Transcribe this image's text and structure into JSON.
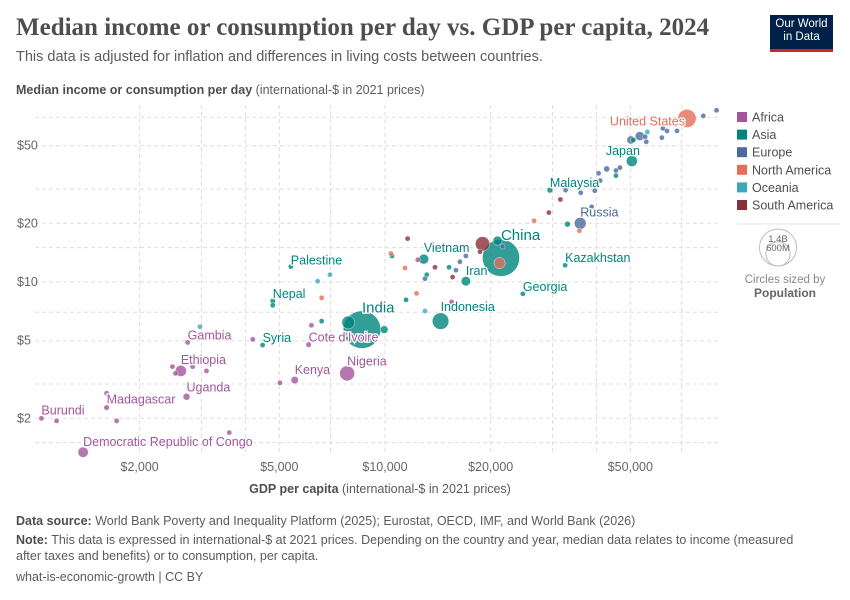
{
  "header": {
    "title": "Median income or consumption per day vs. GDP per capita, 2024",
    "subtitle": "This data is adjusted for inflation and differences in living costs between countries.",
    "logo": {
      "line1": "Our World",
      "line2": "in Data",
      "bg_color": "#002147",
      "accent_color": "#ce261e"
    }
  },
  "chart_data": {
    "type": "scatter",
    "title": "Median income or consumption per day vs. GDP per capita, 2024",
    "ylabel_bold": "Median income or consumption per day",
    "ylabel_unit": "(international-$ in 2021 prices)",
    "xlabel_bold": "GDP per capita",
    "xlabel_unit": "(international-$ in 2021 prices)",
    "x_scale": "log",
    "y_scale": "log",
    "xlim": [
      1000,
      90000
    ],
    "ylim": [
      1.3,
      81
    ],
    "x_ticks": [
      {
        "v": 2000,
        "label": "$2,000"
      },
      {
        "v": 5000,
        "label": "$5,000"
      },
      {
        "v": 10000,
        "label": "$10,000"
      },
      {
        "v": 20000,
        "label": "$20,000"
      },
      {
        "v": 50000,
        "label": "$50,000"
      }
    ],
    "y_ticks": [
      {
        "v": 2,
        "label": "$2"
      },
      {
        "v": 5,
        "label": "$5"
      },
      {
        "v": 10,
        "label": "$10"
      },
      {
        "v": 20,
        "label": "$20"
      },
      {
        "v": 50,
        "label": "$50"
      }
    ],
    "grid": true,
    "legend_position": "right",
    "regions": [
      {
        "name": "Africa",
        "color": "#a2559c"
      },
      {
        "name": "Asia",
        "color": "#00847e"
      },
      {
        "name": "Europe",
        "color": "#4c6a9c"
      },
      {
        "name": "North America",
        "color": "#e56e5a"
      },
      {
        "name": "Oceania",
        "color": "#38aaba"
      },
      {
        "name": "South America",
        "color": "#883039"
      }
    ],
    "size_legend": {
      "title": "Circles sized by",
      "variable": "Population",
      "large": "1.4B",
      "small": "600M",
      "large_value_millions": 1400,
      "small_value_millions": 600
    },
    "points": [
      {
        "label": "United States",
        "region": "North America",
        "x": 72500,
        "y": 69,
        "pop": 340
      },
      {
        "label": "Japan",
        "region": "Asia",
        "x": 50500,
        "y": 41.7,
        "pop": 124
      },
      {
        "label": "Malaysia",
        "region": "Asia",
        "x": 29500,
        "y": 29.6,
        "pop": 35
      },
      {
        "label": "Russia",
        "region": "Europe",
        "x": 36000,
        "y": 20,
        "pop": 144
      },
      {
        "label": "China",
        "region": "Asia",
        "x": 21400,
        "y": 13.3,
        "pop": 1410
      },
      {
        "label": "Kazakhstan",
        "region": "Asia",
        "x": 32600,
        "y": 12.2,
        "pop": 20
      },
      {
        "label": "Vietnam",
        "region": "Asia",
        "x": 12900,
        "y": 13.1,
        "pop": 100
      },
      {
        "label": "Iran",
        "region": "Asia",
        "x": 17000,
        "y": 10.1,
        "pop": 90
      },
      {
        "label": "Georgia",
        "region": "Asia",
        "x": 24700,
        "y": 8.7,
        "pop": 4
      },
      {
        "label": "Indonesia",
        "region": "Asia",
        "x": 14400,
        "y": 6.3,
        "pop": 280
      },
      {
        "label": "India",
        "region": "Asia",
        "x": 8600,
        "y": 5.7,
        "pop": 1440
      },
      {
        "label": "Palestine",
        "region": "Asia",
        "x": 5390,
        "y": 12.0,
        "pop": 5
      },
      {
        "label": "Nepal",
        "region": "Asia",
        "x": 4790,
        "y": 8.0,
        "pop": 30
      },
      {
        "label": "Gambia",
        "region": "Africa",
        "x": 2740,
        "y": 4.9,
        "pop": 3
      },
      {
        "label": "Syria",
        "region": "Asia",
        "x": 4480,
        "y": 4.75,
        "pop": 23
      },
      {
        "label": "Cote d'Ivoire",
        "region": "Africa",
        "x": 6060,
        "y": 4.77,
        "pop": 31
      },
      {
        "label": "Ethiopia",
        "region": "Africa",
        "x": 2620,
        "y": 3.5,
        "pop": 128
      },
      {
        "label": "Kenya",
        "region": "Africa",
        "x": 5530,
        "y": 3.14,
        "pop": 56
      },
      {
        "label": "Nigeria",
        "region": "Africa",
        "x": 7800,
        "y": 3.4,
        "pop": 230
      },
      {
        "label": "Uganda",
        "region": "Africa",
        "x": 2720,
        "y": 2.58,
        "pop": 49
      },
      {
        "label": "Madagascar",
        "region": "Africa",
        "x": 1610,
        "y": 2.27,
        "pop": 31
      },
      {
        "label": "Burundi",
        "region": "Africa",
        "x": 1050,
        "y": 2.0,
        "pop": 14
      },
      {
        "label": "Democratic Republic of Congo",
        "region": "Africa",
        "x": 1380,
        "y": 1.34,
        "pop": 110
      },
      {
        "region": "Africa",
        "x": 1160,
        "y": 1.94,
        "pop": 10
      },
      {
        "region": "Africa",
        "x": 1720,
        "y": 1.94,
        "pop": 10
      },
      {
        "region": "Africa",
        "x": 1610,
        "y": 2.69,
        "pop": 10
      },
      {
        "region": "Africa",
        "x": 2480,
        "y": 3.68,
        "pop": 10
      },
      {
        "region": "Africa",
        "x": 2530,
        "y": 3.4,
        "pop": 20
      },
      {
        "region": "Africa",
        "x": 2830,
        "y": 3.68,
        "pop": 10
      },
      {
        "region": "Africa",
        "x": 3100,
        "y": 3.5,
        "pop": 10
      },
      {
        "region": "Africa",
        "x": 3600,
        "y": 1.69,
        "pop": 10
      },
      {
        "region": "Oceania",
        "x": 2970,
        "y": 5.9,
        "pop": 10
      },
      {
        "region": "Africa",
        "x": 4200,
        "y": 5.08,
        "pop": 10
      },
      {
        "region": "Africa",
        "x": 5020,
        "y": 3.04,
        "pop": 10
      },
      {
        "region": "Oceania",
        "x": 6430,
        "y": 10.1,
        "pop": 10
      },
      {
        "region": "Oceania",
        "x": 6970,
        "y": 10.9,
        "pop": 10
      },
      {
        "region": "North America",
        "x": 6600,
        "y": 8.3,
        "pop": 10
      },
      {
        "region": "Africa",
        "x": 6170,
        "y": 6.0,
        "pop": 10
      },
      {
        "region": "Asia",
        "x": 6600,
        "y": 6.3,
        "pop": 10
      },
      {
        "region": "Asia",
        "x": 4790,
        "y": 7.6,
        "pop": 10
      },
      {
        "region": "Asia",
        "x": 7860,
        "y": 6.2,
        "pop": 170
      },
      {
        "region": "Asia",
        "x": 9950,
        "y": 5.7,
        "pop": 60
      },
      {
        "region": "North America",
        "x": 10400,
        "y": 14.0,
        "pop": 10
      },
      {
        "region": "Asia",
        "x": 10470,
        "y": 13.6,
        "pop": 15
      },
      {
        "region": "South America",
        "x": 11600,
        "y": 16.7,
        "pop": 10
      },
      {
        "region": "North America",
        "x": 11400,
        "y": 11.8,
        "pop": 10
      },
      {
        "region": "Africa",
        "x": 12400,
        "y": 13.0,
        "pop": 10
      },
      {
        "region": "Asia",
        "x": 11480,
        "y": 8.1,
        "pop": 10
      },
      {
        "region": "North America",
        "x": 12300,
        "y": 8.75,
        "pop": 10
      },
      {
        "region": "Asia",
        "x": 13150,
        "y": 10.9,
        "pop": 25
      },
      {
        "region": "Europe",
        "x": 13000,
        "y": 10.4,
        "pop": 10
      },
      {
        "region": "South America",
        "x": 13880,
        "y": 11.9,
        "pop": 10
      },
      {
        "region": "Asia",
        "x": 15220,
        "y": 11.9,
        "pop": 10
      },
      {
        "region": "South America",
        "x": 15580,
        "y": 10.6,
        "pop": 18
      },
      {
        "region": "Europe",
        "x": 15930,
        "y": 11.5,
        "pop": 10
      },
      {
        "region": "Europe",
        "x": 16350,
        "y": 12.7,
        "pop": 10
      },
      {
        "region": "Europe",
        "x": 17000,
        "y": 13.6,
        "pop": 12
      },
      {
        "region": "South America",
        "x": 18650,
        "y": 14.3,
        "pop": 10
      },
      {
        "region": "South America",
        "x": 18960,
        "y": 15.7,
        "pop": 212
      },
      {
        "region": "Asia",
        "x": 20930,
        "y": 16.3,
        "pop": 85
      },
      {
        "region": "Europe",
        "x": 21620,
        "y": 15.2,
        "pop": 10
      },
      {
        "region": "North America",
        "x": 21200,
        "y": 12.5,
        "pop": 130
      },
      {
        "region": "Oceania",
        "x": 13000,
        "y": 7.1,
        "pop": 10
      },
      {
        "region": "Africa",
        "x": 15480,
        "y": 7.9,
        "pop": 20
      },
      {
        "region": "North America",
        "x": 26600,
        "y": 20.6,
        "pop": 10
      },
      {
        "region": "South America",
        "x": 29300,
        "y": 22.7,
        "pop": 10
      },
      {
        "region": "South America",
        "x": 31600,
        "y": 26.5,
        "pop": 10
      },
      {
        "region": "Europe",
        "x": 32700,
        "y": 29.6,
        "pop": 10
      },
      {
        "region": "Europe",
        "x": 36100,
        "y": 28.7,
        "pop": 10
      },
      {
        "region": "Europe",
        "x": 39600,
        "y": 29.4,
        "pop": 10
      },
      {
        "region": "Europe",
        "x": 38800,
        "y": 24.3,
        "pop": 10
      },
      {
        "region": "Asia",
        "x": 33100,
        "y": 19.8,
        "pop": 35
      },
      {
        "region": "North America",
        "x": 35800,
        "y": 18.3,
        "pop": 10
      },
      {
        "region": "Europe",
        "x": 41000,
        "y": 33.1,
        "pop": 10
      },
      {
        "region": "Europe",
        "x": 40600,
        "y": 36.1,
        "pop": 10
      },
      {
        "region": "Europe",
        "x": 42800,
        "y": 38,
        "pop": 38
      },
      {
        "region": "Europe",
        "x": 45500,
        "y": 37.3,
        "pop": 10
      },
      {
        "region": "Europe",
        "x": 46700,
        "y": 38.6,
        "pop": 10
      },
      {
        "region": "Asia",
        "x": 45500,
        "y": 35.1,
        "pop": 10
      },
      {
        "region": "Europe",
        "x": 50200,
        "y": 53.5,
        "pop": 68
      },
      {
        "region": "Asia",
        "x": 51000,
        "y": 53.5,
        "pop": 20
      },
      {
        "region": "Europe",
        "x": 53200,
        "y": 56,
        "pop": 84
      },
      {
        "region": "Europe",
        "x": 55500,
        "y": 52.4,
        "pop": 10
      },
      {
        "region": "Oceania",
        "x": 55900,
        "y": 58.8,
        "pop": 27
      },
      {
        "region": "Europe",
        "x": 55100,
        "y": 55.6,
        "pop": 10
      },
      {
        "region": "Europe",
        "x": 61500,
        "y": 55,
        "pop": 10
      },
      {
        "region": "Europe",
        "x": 61900,
        "y": 61.4,
        "pop": 10
      },
      {
        "region": "Europe",
        "x": 63600,
        "y": 59.5,
        "pop": 10
      },
      {
        "region": "Europe",
        "x": 67900,
        "y": 59.6,
        "pop": 10
      },
      {
        "region": "Europe",
        "x": 80700,
        "y": 71.1,
        "pop": 10
      },
      {
        "region": "Europe",
        "x": 88000,
        "y": 76,
        "pop": 10
      }
    ]
  },
  "footer": {
    "source_label": "Data source:",
    "source_text": "World Bank Poverty and Inequality Platform (2025); Eurostat, OECD, IMF, and World Bank (2026)",
    "note_label": "Note:",
    "note_text": "This data is expressed in international-$ at 2021 prices. Depending on the country and year, median data relates to income (measured after taxes and benefits) or to consumption, per capita.",
    "url_license": "what-is-economic-growth | CC BY"
  }
}
